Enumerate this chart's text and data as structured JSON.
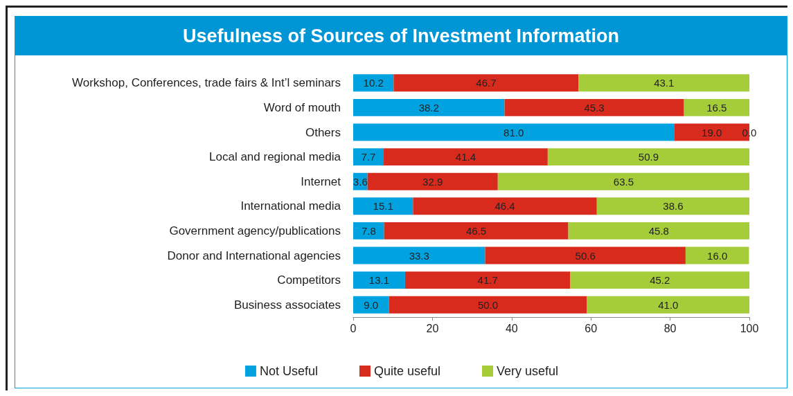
{
  "chart_data": {
    "type": "bar",
    "orientation": "horizontal",
    "stacked": true,
    "title": "Usefulness of Sources of Investment Information",
    "categories": [
      "Workshop, Conferences, trade fairs & Int’l seminars",
      "Word of mouth",
      "Others",
      "Local and regional media",
      "Internet",
      "International media",
      "Government agency/publications",
      "Donor and International agencies",
      "Competitors",
      "Business associates"
    ],
    "series": [
      {
        "name": "Not Useful",
        "color": "#00a3e0",
        "values": [
          10.2,
          38.2,
          81.0,
          7.7,
          3.6,
          15.1,
          7.8,
          33.3,
          13.1,
          9.0
        ],
        "value_labels": [
          "10.2",
          "38.2",
          "81.0",
          "7.7",
          "3.6",
          "15.1",
          "7.8",
          "33.3",
          "13.1",
          "9.0"
        ]
      },
      {
        "name": "Quite useful",
        "color": "#d92a1e",
        "values": [
          46.7,
          45.3,
          19.0,
          41.4,
          32.9,
          46.4,
          46.5,
          50.6,
          41.7,
          50.0
        ],
        "value_labels": [
          "46.7",
          "45.3",
          "19.0",
          "41.4",
          "32.9",
          "46.4",
          "46.5",
          "50.6",
          "41.7",
          "50.0"
        ]
      },
      {
        "name": "Very useful",
        "color": "#a5cd39",
        "values": [
          43.1,
          16.5,
          0.0,
          50.9,
          63.5,
          38.6,
          45.8,
          16.0,
          45.2,
          41.0
        ],
        "value_labels": [
          "43.1",
          "16.5",
          "0.0",
          "50.9",
          "63.5",
          "38.6",
          "45.8",
          "16.0",
          "45.2",
          "41.0"
        ]
      }
    ],
    "xlim": [
      0,
      100
    ],
    "xticks": [
      0,
      20,
      40,
      60,
      80,
      100
    ],
    "grid": false,
    "legend": "bottom"
  }
}
